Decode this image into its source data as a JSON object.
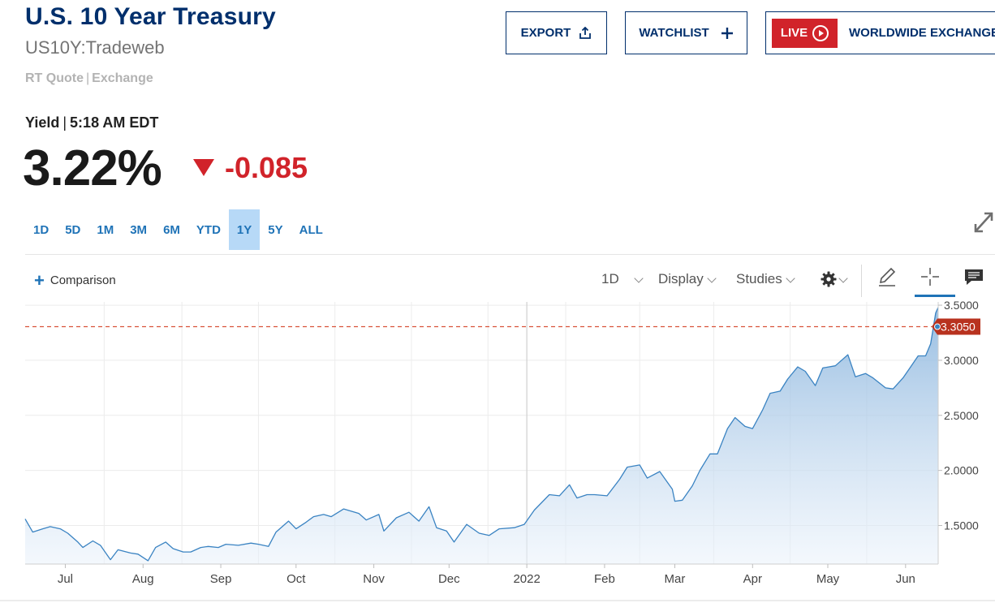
{
  "header": {
    "title": "U.S. 10 Year Treasury",
    "symbol": "US10Y:Tradeweb",
    "quote_type": "RT Quote",
    "quote_sep": "|",
    "exchange": "Exchange"
  },
  "actions": {
    "export_label": "EXPORT",
    "watchlist_label": "WATCHLIST",
    "live_label": "LIVE",
    "live_exchange_label": "WORLDWIDE EXCHANGE"
  },
  "quote": {
    "label": "Yield",
    "sep": "|",
    "time": "5:18 AM EDT",
    "price": "3.22%",
    "change": "-0.085",
    "direction": "down",
    "down_color": "#d1232a"
  },
  "ranges": {
    "items": [
      "1D",
      "5D",
      "1M",
      "3M",
      "6M",
      "YTD",
      "1Y",
      "5Y",
      "ALL"
    ],
    "active": "1Y"
  },
  "toolbar": {
    "comparison_label": "Comparison",
    "interval_label": "1D",
    "display_label": "Display",
    "studies_label": "Studies",
    "icons": [
      "gear-icon",
      "pencil-icon",
      "crosshair-icon",
      "comment-icon",
      "expand-icon",
      "share-icon",
      "plus-icon"
    ]
  },
  "chart_data": {
    "type": "area",
    "series_color": "#3a83c2",
    "reference_line_color": "#d9533a",
    "x_range": [
      "2021-06-15",
      "2022-06-14"
    ],
    "x_ticks": [
      {
        "label": "Jul",
        "date": "2021-07-01"
      },
      {
        "label": "Aug",
        "date": "2021-08-01"
      },
      {
        "label": "Sep",
        "date": "2021-09-01"
      },
      {
        "label": "Oct",
        "date": "2021-10-01"
      },
      {
        "label": "Nov",
        "date": "2021-11-01"
      },
      {
        "label": "Dec",
        "date": "2021-12-01"
      },
      {
        "label": "2022",
        "date": "2022-01-01"
      },
      {
        "label": "Feb",
        "date": "2022-02-01"
      },
      {
        "label": "Mar",
        "date": "2022-03-01"
      },
      {
        "label": "Apr",
        "date": "2022-04-01"
      },
      {
        "label": "May",
        "date": "2022-05-01"
      },
      {
        "label": "Jun",
        "date": "2022-06-01"
      }
    ],
    "y_range": [
      1.15,
      3.53
    ],
    "y_ticks": [
      {
        "label": "1.5000",
        "value": 1.5
      },
      {
        "label": "2.0000",
        "value": 2.0
      },
      {
        "label": "2.5000",
        "value": 2.5
      },
      {
        "label": "3.0000",
        "value": 3.0
      },
      {
        "label": "3.5000",
        "value": 3.5
      }
    ],
    "reference_line": {
      "value": 3.305,
      "label": "3.3050"
    },
    "grid": true,
    "points": [
      [
        "2021-06-15",
        1.56
      ],
      [
        "2021-06-18",
        1.44
      ],
      [
        "2021-06-22",
        1.47
      ],
      [
        "2021-06-25",
        1.49
      ],
      [
        "2021-06-29",
        1.47
      ],
      [
        "2021-07-02",
        1.43
      ],
      [
        "2021-07-06",
        1.35
      ],
      [
        "2021-07-08",
        1.3
      ],
      [
        "2021-07-12",
        1.36
      ],
      [
        "2021-07-15",
        1.32
      ],
      [
        "2021-07-19",
        1.19
      ],
      [
        "2021-07-22",
        1.28
      ],
      [
        "2021-07-27",
        1.25
      ],
      [
        "2021-07-30",
        1.24
      ],
      [
        "2021-08-03",
        1.18
      ],
      [
        "2021-08-06",
        1.3
      ],
      [
        "2021-08-10",
        1.35
      ],
      [
        "2021-08-13",
        1.29
      ],
      [
        "2021-08-17",
        1.26
      ],
      [
        "2021-08-20",
        1.26
      ],
      [
        "2021-08-24",
        1.3
      ],
      [
        "2021-08-27",
        1.31
      ],
      [
        "2021-08-31",
        1.3
      ],
      [
        "2021-09-03",
        1.33
      ],
      [
        "2021-09-08",
        1.32
      ],
      [
        "2021-09-13",
        1.34
      ],
      [
        "2021-09-16",
        1.33
      ],
      [
        "2021-09-20",
        1.31
      ],
      [
        "2021-09-23",
        1.44
      ],
      [
        "2021-09-28",
        1.54
      ],
      [
        "2021-10-01",
        1.47
      ],
      [
        "2021-10-05",
        1.53
      ],
      [
        "2021-10-08",
        1.58
      ],
      [
        "2021-10-12",
        1.6
      ],
      [
        "2021-10-15",
        1.58
      ],
      [
        "2021-10-20",
        1.65
      ],
      [
        "2021-10-26",
        1.61
      ],
      [
        "2021-10-29",
        1.55
      ],
      [
        "2021-11-03",
        1.6
      ],
      [
        "2021-11-05",
        1.45
      ],
      [
        "2021-11-10",
        1.57
      ],
      [
        "2021-11-15",
        1.62
      ],
      [
        "2021-11-19",
        1.54
      ],
      [
        "2021-11-23",
        1.67
      ],
      [
        "2021-11-26",
        1.48
      ],
      [
        "2021-11-30",
        1.45
      ],
      [
        "2021-12-03",
        1.35
      ],
      [
        "2021-12-08",
        1.51
      ],
      [
        "2021-12-13",
        1.43
      ],
      [
        "2021-12-17",
        1.41
      ],
      [
        "2021-12-21",
        1.47
      ],
      [
        "2021-12-27",
        1.48
      ],
      [
        "2021-12-31",
        1.51
      ],
      [
        "2022-01-04",
        1.64
      ],
      [
        "2022-01-10",
        1.78
      ],
      [
        "2022-01-14",
        1.77
      ],
      [
        "2022-01-18",
        1.87
      ],
      [
        "2022-01-21",
        1.75
      ],
      [
        "2022-01-25",
        1.78
      ],
      [
        "2022-01-28",
        1.78
      ],
      [
        "2022-02-02",
        1.77
      ],
      [
        "2022-02-07",
        1.92
      ],
      [
        "2022-02-10",
        2.03
      ],
      [
        "2022-02-15",
        2.05
      ],
      [
        "2022-02-18",
        1.93
      ],
      [
        "2022-02-23",
        1.99
      ],
      [
        "2022-02-28",
        1.83
      ],
      [
        "2022-03-01",
        1.72
      ],
      [
        "2022-03-04",
        1.73
      ],
      [
        "2022-03-08",
        1.86
      ],
      [
        "2022-03-11",
        2.0
      ],
      [
        "2022-03-15",
        2.15
      ],
      [
        "2022-03-18",
        2.15
      ],
      [
        "2022-03-22",
        2.38
      ],
      [
        "2022-03-25",
        2.48
      ],
      [
        "2022-03-29",
        2.4
      ],
      [
        "2022-04-01",
        2.38
      ],
      [
        "2022-04-05",
        2.55
      ],
      [
        "2022-04-08",
        2.7
      ],
      [
        "2022-04-12",
        2.72
      ],
      [
        "2022-04-15",
        2.83
      ],
      [
        "2022-04-19",
        2.94
      ],
      [
        "2022-04-22",
        2.9
      ],
      [
        "2022-04-26",
        2.77
      ],
      [
        "2022-04-29",
        2.93
      ],
      [
        "2022-05-04",
        2.95
      ],
      [
        "2022-05-09",
        3.05
      ],
      [
        "2022-05-12",
        2.85
      ],
      [
        "2022-05-16",
        2.88
      ],
      [
        "2022-05-19",
        2.84
      ],
      [
        "2022-05-24",
        2.75
      ],
      [
        "2022-05-27",
        2.74
      ],
      [
        "2022-05-31",
        2.84
      ],
      [
        "2022-06-03",
        2.94
      ],
      [
        "2022-06-06",
        3.04
      ],
      [
        "2022-06-09",
        3.04
      ],
      [
        "2022-06-11",
        3.15
      ],
      [
        "2022-06-13",
        3.43
      ],
      [
        "2022-06-14",
        3.48
      ]
    ]
  }
}
